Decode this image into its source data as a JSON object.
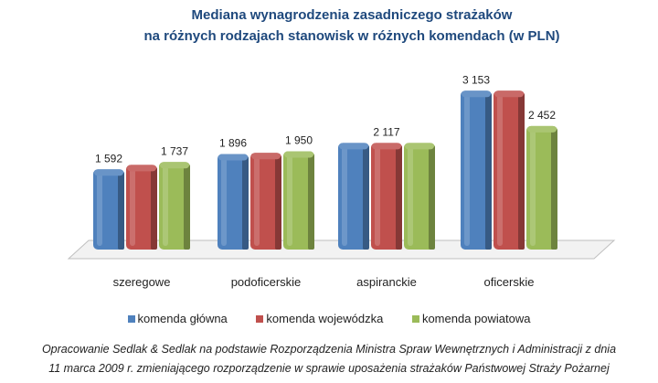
{
  "chart_data": {
    "type": "bar",
    "title_line1": "Mediana wynagrodzenia zasadniczego strażaków",
    "title_line2": "na różnych rodzajach stanowisk w różnych komendach (w PLN)",
    "categories": [
      "szeregowe",
      "podoficerskie",
      "aspiranckie",
      "oficerskie"
    ],
    "series": [
      {
        "name": "komenda główna",
        "color": "#4f81bd",
        "values": [
          1592,
          1896,
          2117,
          3153
        ],
        "labels": [
          "1 592",
          "1 896",
          "",
          "3 153"
        ]
      },
      {
        "name": "komenda wojewódzka",
        "color": "#c0504d",
        "values": [
          1680,
          1920,
          2117,
          3153
        ],
        "labels": [
          "",
          "",
          "2 117",
          ""
        ]
      },
      {
        "name": "komenda powiatowa",
        "color": "#9bbb59",
        "values": [
          1737,
          1950,
          2117,
          2452
        ],
        "labels": [
          "1 737",
          "1 950",
          "",
          "2 452"
        ]
      }
    ],
    "ylim": [
      0,
      3500
    ],
    "grid": false,
    "legend": "bottom"
  },
  "footnote_line1": "Opracowanie Sedlak & Sedlak na podstawie Rozporządzenia Ministra Spraw Wewnętrznych  i Administracji  z dnia",
  "footnote_line2": "11 marca 2009 r. zmieniającego  rozporządzenie  w sprawie  uposażenia strażaków Państwowej Straży Pożarnej"
}
